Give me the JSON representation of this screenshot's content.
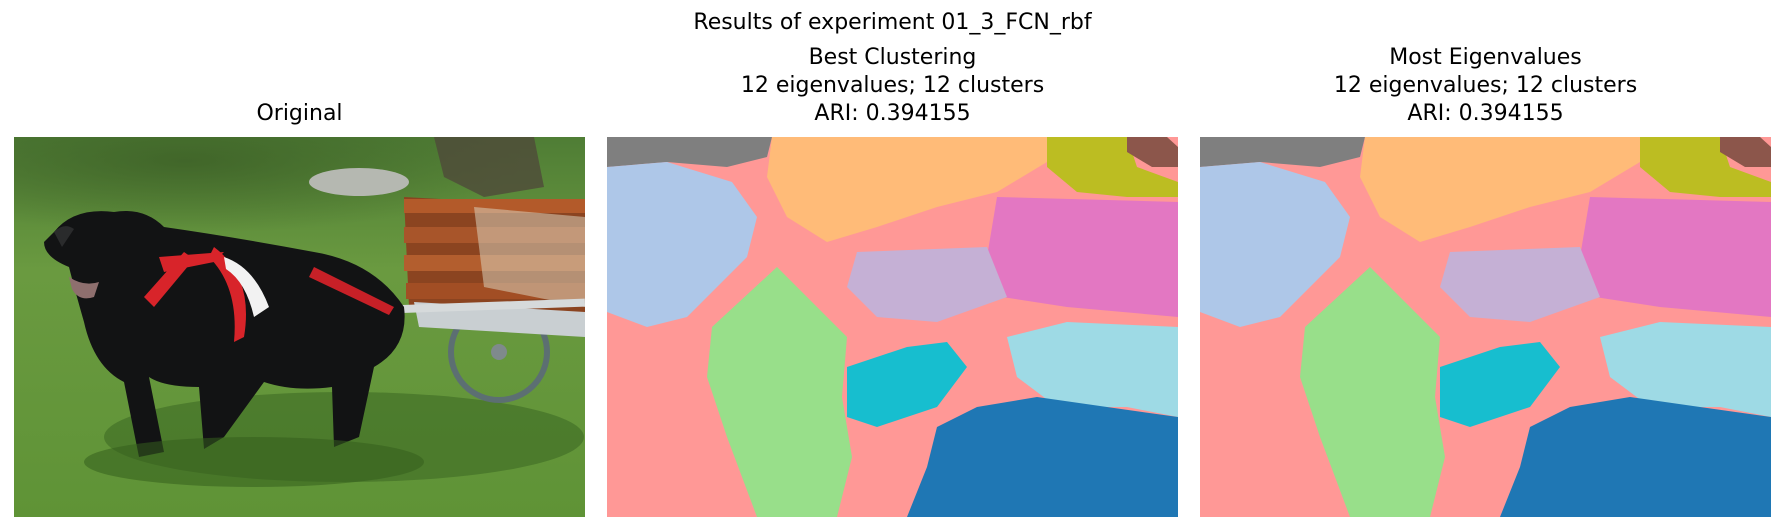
{
  "figure": {
    "suptitle": "Results of experiment 01_3_FCN_rbf"
  },
  "panels": [
    {
      "title_lines": [
        "Original"
      ],
      "image": "photo of a black dog harnessed to a wooden cart on grass"
    },
    {
      "title_lines": [
        "Best Clustering",
        "12 eigenvalues; 12 clusters",
        "ARI: 0.394155"
      ],
      "image": "segmentation map"
    },
    {
      "title_lines": [
        "Most Eigenvalues",
        "12 eigenvalues; 12 clusters",
        "ARI: 0.394155"
      ],
      "image": "segmentation map"
    }
  ],
  "cluster_colors": {
    "c0": "#7f7f7f",
    "c1": "#aec7e8",
    "c2": "#ffbb78",
    "c3": "#bcbd22",
    "c4": "#8c564b",
    "c5": "#e377c2",
    "c6": "#ff9896",
    "c7": "#c5b0d5",
    "c8": "#98df8a",
    "c9": "#17becf",
    "c10": "#9edae5",
    "c11": "#1f77b4"
  }
}
